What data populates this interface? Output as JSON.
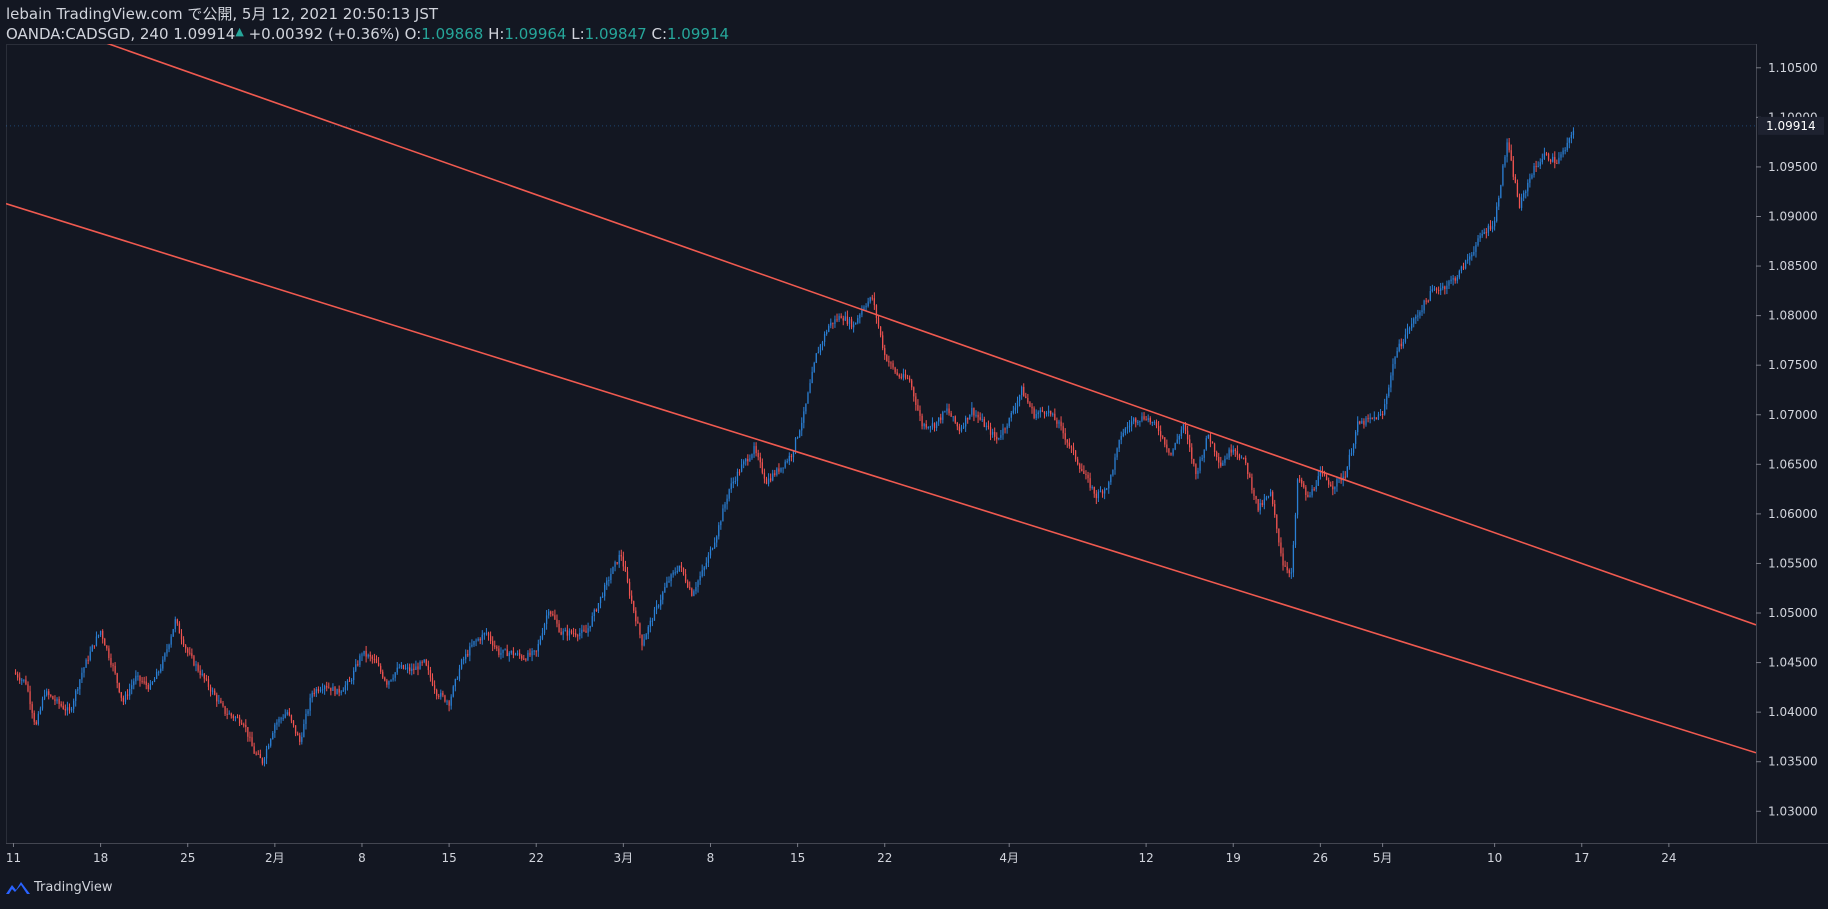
{
  "header": {
    "line1": "lebain TradingView.com で公開, 5月 12, 2021 20:50:13 JST",
    "symbol": "OANDA:CADSGD, 240",
    "last": "1.09914",
    "change": "+0.00392 (+0.36%)",
    "o_label": "O:",
    "o_value": "1.09868",
    "h_label": "H:",
    "h_value": "1.09964",
    "l_label": "L:",
    "l_value": "1.09847",
    "c_label": "C:",
    "c_value": "1.09914"
  },
  "footer": {
    "brand": "TradingView"
  },
  "colors": {
    "background": "#131722",
    "up": "#2a7fd4",
    "down": "#ef5350",
    "trendline": "#f05a50",
    "grid_text": "#d1d4dc",
    "price_tag": "#1e2230"
  },
  "chart_data": {
    "type": "candlestick",
    "symbol": "OANDA:CADSGD",
    "interval": "240",
    "x_labels": [
      {
        "label": "11",
        "day": 0
      },
      {
        "label": "18",
        "day": 7
      },
      {
        "label": "25",
        "day": 14
      },
      {
        "label": "2月",
        "day": 21
      },
      {
        "label": "8",
        "day": 28
      },
      {
        "label": "15",
        "day": 35
      },
      {
        "label": "22",
        "day": 42
      },
      {
        "label": "3月",
        "day": 49
      },
      {
        "label": "8",
        "day": 56
      },
      {
        "label": "15",
        "day": 63
      },
      {
        "label": "22",
        "day": 70
      },
      {
        "label": "4月",
        "day": 80
      },
      {
        "label": "12",
        "day": 91
      },
      {
        "label": "19",
        "day": 98
      },
      {
        "label": "26",
        "day": 105
      },
      {
        "label": "5月",
        "day": 110
      },
      {
        "label": "10",
        "day": 119
      },
      {
        "label": "17",
        "day": 126
      },
      {
        "label": "24",
        "day": 133
      }
    ],
    "y_ticks": [
      "1.10500",
      "1.10000",
      "1.09500",
      "1.09000",
      "1.08500",
      "1.08000",
      "1.07500",
      "1.07000",
      "1.06500",
      "1.06000",
      "1.05500",
      "1.05000",
      "1.04500",
      "1.04000",
      "1.03500",
      "1.03000"
    ],
    "ylim": [
      1.0268,
      1.1074
    ],
    "xlim_days": [
      -0.6,
      140
    ],
    "current_price": "1.09914",
    "path_points": [
      [
        0,
        1.044
      ],
      [
        1,
        1.043
      ],
      [
        1.8,
        1.0385
      ],
      [
        2.5,
        1.042
      ],
      [
        3.5,
        1.041
      ],
      [
        4.5,
        1.04
      ],
      [
        5.5,
        1.044
      ],
      [
        6.5,
        1.047
      ],
      [
        7,
        1.0482
      ],
      [
        8,
        1.0445
      ],
      [
        8.8,
        1.041
      ],
      [
        9.8,
        1.0435
      ],
      [
        11,
        1.0425
      ],
      [
        12,
        1.045
      ],
      [
        13,
        1.0492
      ],
      [
        14,
        1.046
      ],
      [
        15,
        1.044
      ],
      [
        16,
        1.042
      ],
      [
        17,
        1.04
      ],
      [
        18.5,
        1.039
      ],
      [
        19.3,
        1.036
      ],
      [
        20,
        1.035
      ],
      [
        21,
        1.0388
      ],
      [
        22,
        1.04
      ],
      [
        23,
        1.037
      ],
      [
        24,
        1.042
      ],
      [
        25,
        1.0428
      ],
      [
        26,
        1.042
      ],
      [
        27,
        1.043
      ],
      [
        28,
        1.046
      ],
      [
        29,
        1.0452
      ],
      [
        30,
        1.043
      ],
      [
        31,
        1.0445
      ],
      [
        32,
        1.0442
      ],
      [
        33,
        1.045
      ],
      [
        34,
        1.042
      ],
      [
        35,
        1.041
      ],
      [
        36,
        1.045
      ],
      [
        37,
        1.047
      ],
      [
        38,
        1.048
      ],
      [
        39,
        1.046
      ],
      [
        40,
        1.046
      ],
      [
        41,
        1.0455
      ],
      [
        42,
        1.046
      ],
      [
        43,
        1.0505
      ],
      [
        44,
        1.048
      ],
      [
        45,
        1.048
      ],
      [
        46,
        1.048
      ],
      [
        47,
        1.051
      ],
      [
        48,
        1.054
      ],
      [
        48.8,
        1.056
      ],
      [
        49.5,
        1.052
      ],
      [
        50.5,
        1.047
      ],
      [
        51.5,
        1.05
      ],
      [
        52.5,
        1.053
      ],
      [
        53.5,
        1.0548
      ],
      [
        54.5,
        1.052
      ],
      [
        55.5,
        1.0545
      ],
      [
        56.5,
        1.058
      ],
      [
        57.5,
        1.0625
      ],
      [
        58.5,
        1.0648
      ],
      [
        59.5,
        1.0665
      ],
      [
        60.5,
        1.0633
      ],
      [
        61.5,
        1.0645
      ],
      [
        62.5,
        1.066
      ],
      [
        63.5,
        1.07
      ],
      [
        64.5,
        1.076
      ],
      [
        65.5,
        1.079
      ],
      [
        66.5,
        1.08
      ],
      [
        67.5,
        1.079
      ],
      [
        68.3,
        1.081
      ],
      [
        69,
        1.0818
      ],
      [
        70,
        1.076
      ],
      [
        71,
        1.074
      ],
      [
        72,
        1.0735
      ],
      [
        73,
        1.069
      ],
      [
        74,
        1.069
      ],
      [
        75,
        1.0705
      ],
      [
        76,
        1.0685
      ],
      [
        77,
        1.0705
      ],
      [
        78,
        1.069
      ],
      [
        79,
        1.0675
      ],
      [
        80,
        1.0695
      ],
      [
        81,
        1.0725
      ],
      [
        82,
        1.07
      ],
      [
        83,
        1.0705
      ],
      [
        84,
        1.069
      ],
      [
        85,
        1.0665
      ],
      [
        86,
        1.064
      ],
      [
        87,
        1.0618
      ],
      [
        88,
        1.063
      ],
      [
        89,
        1.068
      ],
      [
        90,
        1.0695
      ],
      [
        91,
        1.0698
      ],
      [
        92,
        1.0685
      ],
      [
        93,
        1.066
      ],
      [
        94,
        1.069
      ],
      [
        95,
        1.064
      ],
      [
        96,
        1.068
      ],
      [
        97,
        1.065
      ],
      [
        98,
        1.0668
      ],
      [
        99,
        1.065
      ],
      [
        100,
        1.0605
      ],
      [
        101,
        1.062
      ],
      [
        102,
        1.055
      ],
      [
        102.7,
        1.054
      ],
      [
        103.2,
        1.0638
      ],
      [
        104,
        1.0615
      ],
      [
        105,
        1.064
      ],
      [
        106,
        1.0628
      ],
      [
        107,
        1.064
      ],
      [
        108,
        1.069
      ],
      [
        109,
        1.0695
      ],
      [
        110,
        1.07
      ],
      [
        111,
        1.076
      ],
      [
        112,
        1.0785
      ],
      [
        113,
        1.0805
      ],
      [
        114,
        1.0825
      ],
      [
        115,
        1.083
      ],
      [
        116,
        1.084
      ],
      [
        117,
        1.086
      ],
      [
        118,
        1.0882
      ],
      [
        119,
        1.0895
      ],
      [
        120,
        1.0975
      ],
      [
        121,
        1.091
      ],
      [
        122,
        1.0945
      ],
      [
        123,
        1.0962
      ],
      [
        124,
        1.0955
      ],
      [
        124.8,
        1.097
      ],
      [
        125.4,
        1.0991
      ]
    ],
    "trendlines": [
      {
        "name": "channel-upper",
        "from": [
          -14,
          1.117
        ],
        "to": [
          140,
          1.0488
        ]
      },
      {
        "name": "channel-lower",
        "from": [
          -0.6,
          1.0913
        ],
        "to": [
          140,
          1.0359
        ]
      }
    ]
  }
}
